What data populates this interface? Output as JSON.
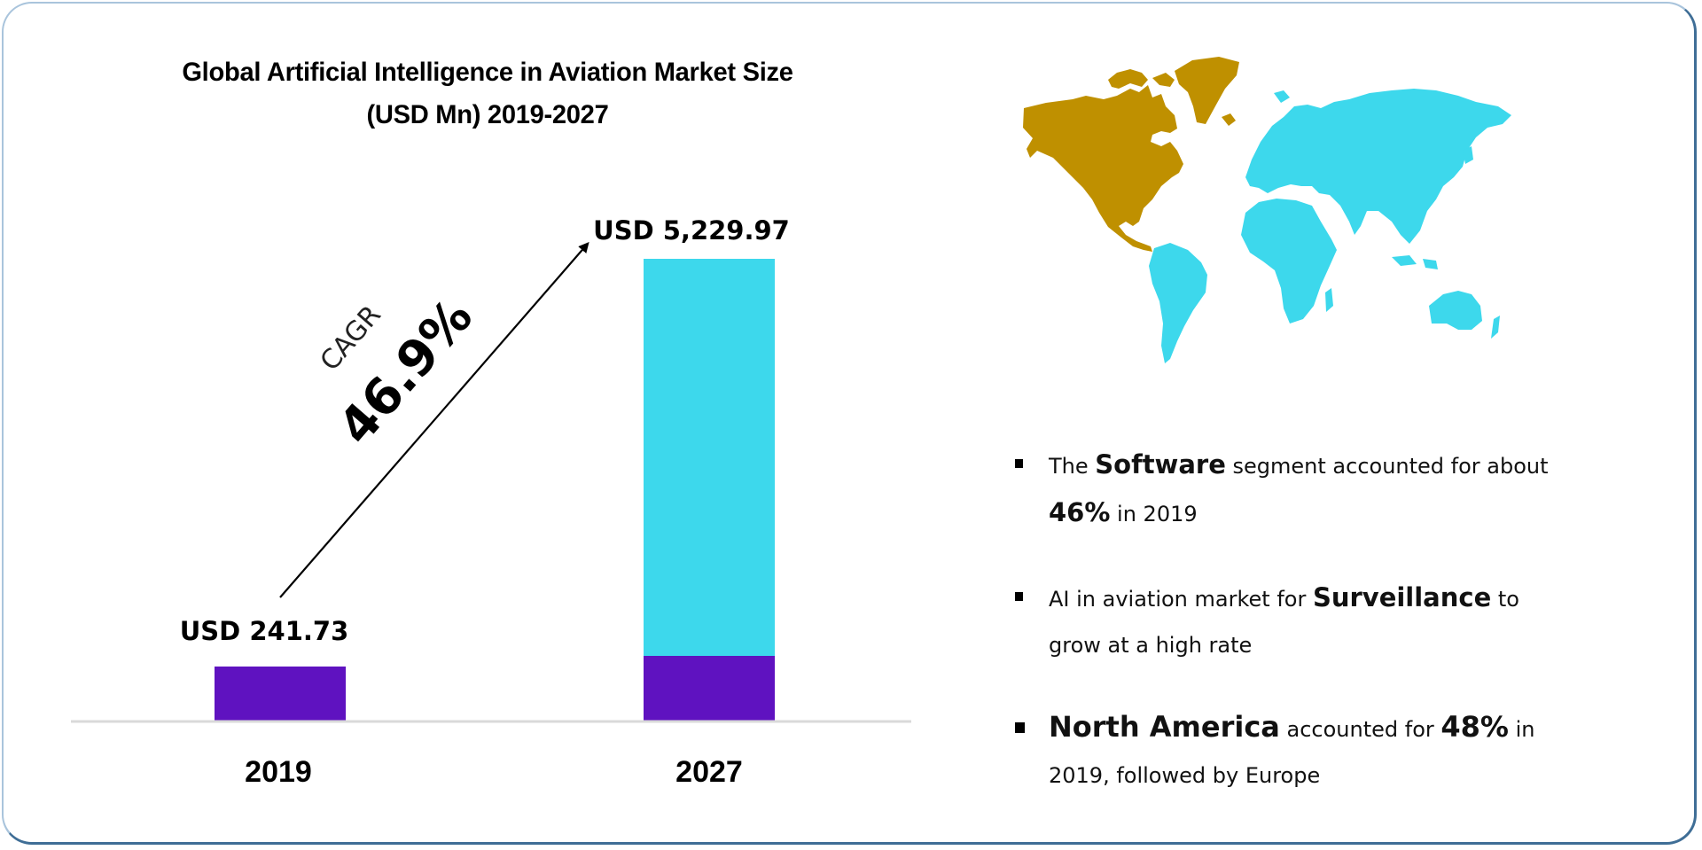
{
  "title_lines": [
    "Global Artificial Intelligence in Aviation Market Size",
    "(USD Mn) 2019-2027"
  ],
  "colors": {
    "bar_base": "#5f12c0",
    "bar_top": "#3dd8ec",
    "axis": "#d9d9d9",
    "map_north_america": "#bf9000",
    "map_rest_of_world": "#3dd8ec",
    "border": "#3f6e96"
  },
  "cagr": {
    "label": "CAGR",
    "value": "46.9%"
  },
  "chart_data": {
    "type": "bar",
    "title": "Global Artificial Intelligence in Aviation Market Size (USD Mn) 2019-2027",
    "categories": [
      "2019",
      "2027"
    ],
    "values": [
      241.73,
      5229.97
    ],
    "data_labels": [
      "USD 241.73",
      "USD 5,229.97"
    ],
    "stacked_display": {
      "base_segment_value": 241.73,
      "note": "2027 bar shows base (2019-level) segment in purple with growth in cyan"
    },
    "xlabel": "",
    "ylabel": "",
    "ylim": [
      0,
      5229.97
    ],
    "grid": false,
    "legend": "none",
    "annotation": "CAGR 46.9%"
  },
  "map": {
    "highlighted_region": "North America",
    "icon": "world-map"
  },
  "bullets": [
    {
      "parts": [
        [
          "The ",
          false
        ],
        [
          "Software",
          true
        ],
        [
          " segment accounted for about",
          false
        ],
        [
          "\n",
          false
        ],
        [
          "46%",
          true
        ],
        [
          " in 2019",
          false
        ]
      ]
    },
    {
      "parts": [
        [
          "AI in aviation market for ",
          false
        ],
        [
          "Surveillance",
          true
        ],
        [
          " to",
          false
        ],
        [
          "\n",
          false
        ],
        [
          "grow at a high rate",
          false
        ]
      ]
    },
    {
      "parts": [
        [
          "North America",
          true
        ],
        [
          " accounted for ",
          false
        ],
        [
          "48%",
          true
        ],
        [
          " in",
          false
        ],
        [
          "\n",
          false
        ],
        [
          "2019, followed by Europe",
          false
        ]
      ]
    }
  ]
}
